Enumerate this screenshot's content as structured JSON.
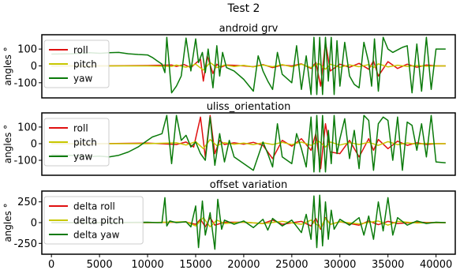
{
  "figure_title": "Test 2",
  "colors": {
    "roll": "#e01010",
    "pitch": "#c8c800",
    "yaw": "#0a7a0a"
  },
  "x_ticks": [
    0,
    5000,
    10000,
    15000,
    20000,
    25000,
    30000,
    35000,
    40000
  ],
  "chart_data": [
    {
      "type": "line",
      "title": "android grv",
      "ylabel": "angles °",
      "xlim": [
        -1000,
        42000
      ],
      "ylim": [
        -190,
        185
      ],
      "yticks": [
        -100,
        0,
        100
      ],
      "grid": false,
      "legend_position": "left",
      "series": [
        {
          "name": "roll",
          "color_key": "roll",
          "x": [
            0,
            5000,
            10000,
            12500,
            13000,
            13800,
            14500,
            15500,
            15800,
            16200,
            16800,
            17200,
            17600,
            18200,
            19000,
            20000,
            21000,
            22000,
            23000,
            24000,
            25000,
            26000,
            27000,
            27500,
            28000,
            28500,
            29000,
            30000,
            31000,
            32000,
            33000,
            33500,
            34000,
            35000,
            36000,
            37000,
            38000,
            39000,
            40000,
            41000
          ],
          "y": [
            0,
            0,
            2,
            5,
            -3,
            8,
            -10,
            40,
            -90,
            60,
            -45,
            10,
            -8,
            5,
            3,
            0,
            -5,
            8,
            -10,
            5,
            0,
            12,
            -15,
            20,
            -120,
            140,
            -30,
            10,
            -8,
            15,
            -20,
            30,
            -60,
            25,
            -15,
            10,
            -8,
            5,
            0,
            0
          ]
        },
        {
          "name": "pitch",
          "color_key": "pitch",
          "x": [
            0,
            5000,
            10000,
            12500,
            13000,
            14000,
            15000,
            15800,
            16500,
            17200,
            18000,
            19000,
            20000,
            21000,
            22000,
            23000,
            24000,
            25000,
            26000,
            27000,
            27800,
            28500,
            29000,
            30000,
            31000,
            32000,
            33000,
            33500,
            34000,
            35000,
            36000,
            37000,
            38000,
            39000,
            40000,
            41000
          ],
          "y": [
            0,
            0,
            0,
            -3,
            5,
            -8,
            10,
            -25,
            20,
            -10,
            5,
            -4,
            3,
            -6,
            5,
            -5,
            8,
            -6,
            10,
            -10,
            15,
            -20,
            10,
            -8,
            6,
            -5,
            8,
            -10,
            12,
            -6,
            4,
            -3,
            2,
            -2,
            0,
            0
          ]
        },
        {
          "name": "yaw",
          "color_key": "yaw",
          "x": [
            0,
            2000,
            4000,
            5000,
            6000,
            7000,
            8000,
            9000,
            10000,
            10500,
            11000,
            11500,
            11800,
            12000,
            12500,
            13000,
            13500,
            14000,
            14500,
            15000,
            15300,
            15700,
            16000,
            16300,
            16800,
            17200,
            17500,
            17800,
            18200,
            19000,
            20000,
            21000,
            21500,
            22000,
            22500,
            23000,
            23500,
            24000,
            25000,
            25500,
            26000,
            26500,
            27000,
            27300,
            27600,
            27900,
            28200,
            28500,
            28800,
            29100,
            29400,
            29700,
            30000,
            30500,
            31000,
            31500,
            32000,
            32500,
            33000,
            33300,
            33600,
            34000,
            34500,
            35000,
            35500,
            36000,
            36500,
            37000,
            37500,
            38000,
            38500,
            39000,
            39500,
            40000,
            40500,
            41000
          ],
          "y": [
            70,
            72,
            78,
            75,
            78,
            80,
            72,
            68,
            65,
            50,
            30,
            10,
            -40,
            170,
            -160,
            -120,
            -60,
            165,
            -30,
            160,
            20,
            80,
            -40,
            100,
            -130,
            120,
            -60,
            80,
            -10,
            -30,
            -80,
            -150,
            60,
            -30,
            -90,
            -140,
            80,
            -50,
            -100,
            120,
            -140,
            60,
            -170,
            170,
            -170,
            170,
            -170,
            170,
            -90,
            170,
            -170,
            150,
            -120,
            140,
            -60,
            -110,
            -130,
            140,
            20,
            -120,
            160,
            -150,
            170,
            100,
            80,
            95,
            110,
            120,
            -160,
            130,
            -150,
            170,
            -140,
            100,
            100,
            100
          ]
        }
      ]
    },
    {
      "type": "line",
      "title": "uliss_orientation",
      "ylabel": "angles °",
      "xlim": [
        -1000,
        42000
      ],
      "ylim": [
        -190,
        185
      ],
      "yticks": [
        -100,
        0,
        100
      ],
      "grid": false,
      "legend_position": "left",
      "series": [
        {
          "name": "roll",
          "color_key": "roll",
          "x": [
            0,
            5000,
            10000,
            13000,
            14000,
            14800,
            15500,
            16000,
            16500,
            17000,
            17500,
            18000,
            19000,
            20000,
            21000,
            22000,
            23000,
            24000,
            25000,
            26000,
            27000,
            27500,
            28000,
            28500,
            29000,
            30000,
            31000,
            32000,
            33000,
            33500,
            34000,
            35000,
            36000,
            37000,
            38000,
            39000,
            40000,
            41000
          ],
          "y": [
            0,
            0,
            3,
            -5,
            10,
            -20,
            160,
            -80,
            170,
            -60,
            20,
            -5,
            5,
            -3,
            8,
            -10,
            -90,
            20,
            -15,
            30,
            -40,
            60,
            -150,
            120,
            -50,
            -60,
            20,
            -80,
            30,
            -40,
            25,
            -30,
            15,
            -10,
            5,
            -5,
            0,
            0
          ]
        },
        {
          "name": "pitch",
          "color_key": "pitch",
          "x": [
            0,
            5000,
            10000,
            13000,
            14000,
            15000,
            15800,
            16500,
            17200,
            18000,
            19000,
            20000,
            21000,
            22000,
            23000,
            24000,
            25000,
            26000,
            27000,
            27800,
            28500,
            29000,
            30000,
            31000,
            32000,
            33000,
            34000,
            35000,
            36000,
            37000,
            38000,
            39000,
            40000,
            41000
          ],
          "y": [
            0,
            0,
            0,
            5,
            -8,
            12,
            -30,
            25,
            -12,
            6,
            -4,
            3,
            -6,
            5,
            -5,
            8,
            -6,
            10,
            -10,
            15,
            -20,
            10,
            -8,
            6,
            -5,
            8,
            -10,
            12,
            -6,
            4,
            -3,
            2,
            0,
            0
          ]
        },
        {
          "name": "yaw",
          "color_key": "yaw",
          "x": [
            0,
            2000,
            4000,
            5000,
            6000,
            7000,
            8000,
            9000,
            10000,
            10500,
            11000,
            11500,
            12000,
            12500,
            13000,
            13500,
            14000,
            14500,
            15000,
            15500,
            16000,
            16500,
            17000,
            17500,
            18000,
            18500,
            19000,
            20000,
            21000,
            22000,
            22500,
            23000,
            23500,
            24000,
            25000,
            25500,
            26000,
            26500,
            27000,
            27300,
            27600,
            27900,
            28200,
            28500,
            28800,
            29100,
            29400,
            29700,
            30000,
            30500,
            31000,
            31500,
            32000,
            32500,
            33000,
            33500,
            34000,
            34500,
            35000,
            35500,
            36000,
            36500,
            37000,
            37500,
            38000,
            38500,
            39000,
            39500,
            40000,
            41000
          ],
          "y": [
            -65,
            -70,
            -78,
            -75,
            -80,
            -70,
            -50,
            -20,
            20,
            40,
            50,
            60,
            170,
            -120,
            170,
            20,
            50,
            -20,
            10,
            -60,
            -100,
            160,
            -130,
            60,
            -110,
            20,
            -80,
            -120,
            -160,
            10,
            -60,
            -140,
            120,
            -80,
            -120,
            60,
            -30,
            -140,
            160,
            -170,
            170,
            -170,
            170,
            -170,
            80,
            -120,
            170,
            -60,
            30,
            150,
            -90,
            80,
            -150,
            170,
            140,
            -160,
            120,
            160,
            140,
            -100,
            160,
            -160,
            130,
            110,
            -40,
            120,
            -80,
            170,
            -110,
            -115
          ]
        }
      ]
    },
    {
      "type": "line",
      "title": "offset variation",
      "ylabel": "angles °",
      "xlim": [
        -1000,
        42000
      ],
      "ylim": [
        -380,
        380
      ],
      "yticks": [
        -250,
        0,
        250
      ],
      "grid": false,
      "legend_position": "left",
      "series": [
        {
          "name": "delta roll",
          "color_key": "roll",
          "x": [
            0,
            5000,
            10000,
            14000,
            15000,
            15500,
            16000,
            16500,
            17000,
            18000,
            20000,
            22000,
            23000,
            24000,
            26000,
            27000,
            27500,
            28000,
            28500,
            29000,
            30000,
            32000,
            33000,
            34000,
            35000,
            36000,
            38000,
            40000,
            41000
          ],
          "y": [
            0,
            0,
            0,
            8,
            -20,
            40,
            -50,
            60,
            -30,
            5,
            5,
            -10,
            30,
            -20,
            15,
            -40,
            50,
            -80,
            60,
            -20,
            10,
            -30,
            20,
            -25,
            15,
            -10,
            5,
            0,
            0
          ]
        },
        {
          "name": "delta pitch",
          "color_key": "pitch",
          "x": [
            0,
            5000,
            10000,
            14000,
            15000,
            15800,
            16500,
            17200,
            18000,
            20000,
            22000,
            24000,
            26000,
            27000,
            28000,
            28500,
            29000,
            30000,
            32000,
            34000,
            35000,
            36000,
            38000,
            40000,
            41000
          ],
          "y": [
            0,
            0,
            0,
            10,
            -40,
            60,
            -50,
            30,
            -10,
            8,
            -12,
            15,
            -20,
            30,
            -60,
            50,
            -20,
            10,
            -15,
            20,
            -30,
            15,
            -5,
            0,
            0
          ]
        },
        {
          "name": "delta yaw",
          "color_key": "yaw",
          "x": [
            0,
            5000,
            10000,
            11000,
            11500,
            11800,
            12000,
            12300,
            13000,
            14000,
            14500,
            15000,
            15300,
            15700,
            16000,
            16500,
            17000,
            17300,
            17700,
            18000,
            19000,
            20000,
            21000,
            22000,
            22500,
            23000,
            24000,
            25000,
            26000,
            26500,
            27000,
            27300,
            27600,
            27900,
            28200,
            28500,
            28800,
            29100,
            29400,
            30000,
            31000,
            32000,
            32500,
            33000,
            33500,
            34000,
            34500,
            35000,
            35500,
            36000,
            37000,
            38000,
            39000,
            40000,
            41000
          ],
          "y": [
            0,
            0,
            5,
            0,
            0,
            300,
            -40,
            20,
            0,
            10,
            -50,
            200,
            -300,
            260,
            -150,
            120,
            -320,
            280,
            -80,
            30,
            -20,
            20,
            -60,
            40,
            -90,
            50,
            -40,
            30,
            -120,
            100,
            -200,
            320,
            -300,
            330,
            -280,
            250,
            -200,
            150,
            -80,
            40,
            -30,
            60,
            -150,
            80,
            -200,
            250,
            -100,
            300,
            -150,
            60,
            -30,
            20,
            -10,
            5,
            0
          ]
        }
      ]
    }
  ]
}
